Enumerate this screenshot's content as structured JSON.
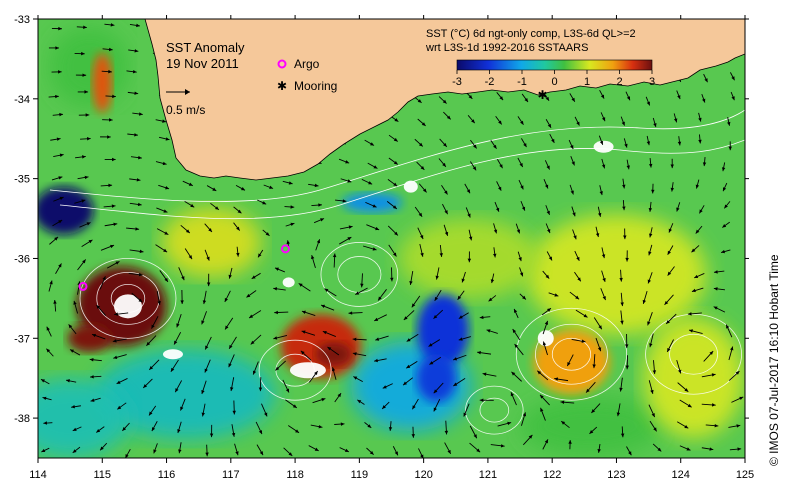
{
  "map": {
    "title": "SST Anomaly",
    "date": "19 Nov 2011",
    "vector_scale_label": "0.5 m/s",
    "legend": [
      {
        "label": "Argo",
        "marker": "magenta-circle",
        "color": "#ff00ff"
      },
      {
        "label": "Mooring",
        "marker": "black-star",
        "color": "#000000"
      }
    ],
    "colorbar": {
      "title_line1": "SST (°C) 6d ngt-only comp, L3S-6d QL>=2",
      "title_line2": "wrt L3S-1d 1992-2016 SSTAARS",
      "ticks": [
        "-3",
        "-2",
        "-1",
        "0",
        "1",
        "2",
        "3"
      ],
      "range": [
        -3,
        3
      ]
    },
    "credit": "© IMOS 07-Jul-2017 16:10 Hobart Time",
    "axes": {
      "x_ticks": [
        "114",
        "115",
        "116",
        "117",
        "118",
        "119",
        "120",
        "121",
        "122",
        "123",
        "124",
        "125"
      ],
      "y_ticks": [
        "-33",
        "-34",
        "-35",
        "-36",
        "-37",
        "-38"
      ],
      "lon_range": [
        114,
        125
      ],
      "lat_range": [
        -38.5,
        -33
      ]
    },
    "land_color": "#f5c89a",
    "argo_floats": [
      {
        "lon": 114.7,
        "lat": -36.35
      },
      {
        "lon": 117.85,
        "lat": -35.88
      }
    ],
    "moorings": [
      {
        "lon": 121.85,
        "lat": -33.95
      }
    ],
    "features": [
      {
        "type": "warm-eddy",
        "lon": 115.3,
        "lat": -36.6,
        "anomaly": 3
      },
      {
        "type": "warm-eddy",
        "lon": 118.4,
        "lat": -37.1,
        "anomaly": 2.5
      },
      {
        "type": "warm-eddy",
        "lon": 122.3,
        "lat": -37.3,
        "anomaly": 1.8
      },
      {
        "type": "cool-water",
        "lon": 114.4,
        "lat": -35.4,
        "anomaly": -3
      },
      {
        "type": "cool-water",
        "lon": 120.3,
        "lat": -36.9,
        "anomaly": -2
      }
    ]
  }
}
